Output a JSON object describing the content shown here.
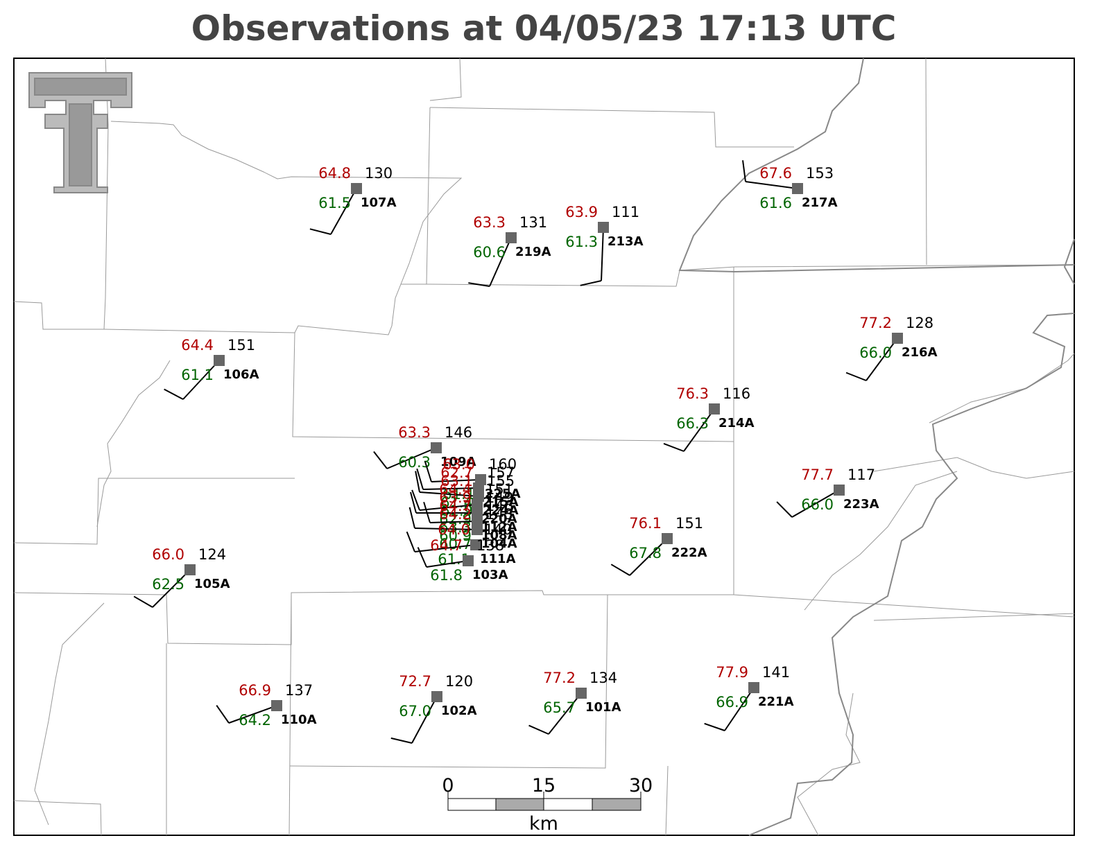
{
  "title": "Observations at 04/05/23 17:13 UTC",
  "stations": [
    {
      "id": "107A",
      "temp": "64.8",
      "dewpoint": "61.5",
      "pressure": "130"
    },
    {
      "id": "219A",
      "temp": "63.3",
      "dewpoint": "60.6",
      "pressure": "131"
    },
    {
      "id": "213A",
      "temp": "63.9",
      "dewpoint": "61.3",
      "pressure": "111"
    },
    {
      "id": "217A",
      "temp": "67.6",
      "dewpoint": "61.6",
      "pressure": "153"
    },
    {
      "id": "216A",
      "temp": "77.2",
      "dewpoint": "66.0",
      "pressure": "128"
    },
    {
      "id": "106A",
      "temp": "64.4",
      "dewpoint": "61.1",
      "pressure": "151"
    },
    {
      "id": "214A",
      "temp": "76.3",
      "dewpoint": "66.3",
      "pressure": "116"
    },
    {
      "id": "109A",
      "temp": "63.3",
      "dewpoint": "60.3",
      "pressure": "146"
    },
    {
      "id": "223A",
      "temp": "77.7",
      "dewpoint": "66.0",
      "pressure": "117"
    },
    {
      "id": "222A",
      "temp": "76.1",
      "dewpoint": "67.8",
      "pressure": "151"
    },
    {
      "id": "105A",
      "temp": "66.0",
      "dewpoint": "62.5",
      "pressure": "124"
    },
    {
      "id": "225A",
      "temp": "63.0",
      "dewpoint": "61.1",
      "pressure": "160"
    },
    {
      "id": "215A",
      "temp": "62.7",
      "dewpoint": "61.4",
      "pressure": "157"
    },
    {
      "id": "224A",
      "temp": "63.1",
      "dewpoint": "61.9",
      "pressure": "155"
    },
    {
      "id": "220A",
      "temp": "64.4",
      "dewpoint": "62.9",
      "pressure": "151"
    },
    {
      "id": "112A",
      "temp": "63.9",
      "dewpoint": "63.3",
      "pressure": "149"
    },
    {
      "id": "108A",
      "temp": "64.7",
      "dewpoint": "60.9",
      "pressure": "146"
    },
    {
      "id": "104A",
      "temp": "64.2",
      "dewpoint": "60.7",
      "pressure": "143"
    },
    {
      "id": "111A",
      "temp": "64.0",
      "dewpoint": "61.1",
      "pressure": "140"
    },
    {
      "id": "103A",
      "temp": "64.7",
      "dewpoint": "61.8",
      "pressure": "138"
    },
    {
      "id": "110A",
      "temp": "66.9",
      "dewpoint": "64.2",
      "pressure": "137"
    },
    {
      "id": "102A",
      "temp": "72.7",
      "dewpoint": "67.0",
      "pressure": "120"
    },
    {
      "id": "101A",
      "temp": "77.2",
      "dewpoint": "65.7",
      "pressure": "134"
    },
    {
      "id": "221A",
      "temp": "77.9",
      "dewpoint": "66.9",
      "pressure": "141"
    }
  ],
  "scale_bar": {
    "ticks": [
      "0",
      "15",
      "30"
    ],
    "unit": "km"
  }
}
